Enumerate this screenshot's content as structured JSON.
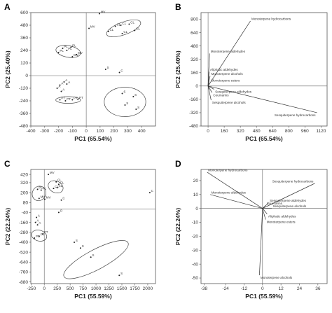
{
  "chart_data": [
    {
      "panel": "A",
      "type": "scatter",
      "xlabel": "PC1 (65.54%)",
      "ylabel": "PC2 (25.40%)",
      "xlim": [
        -400,
        500
      ],
      "ylim": [
        -480,
        600
      ],
      "xticks": [
        -400,
        -300,
        -200,
        -100,
        0,
        100,
        200,
        300,
        400
      ],
      "yticks": [
        600,
        480,
        360,
        240,
        120,
        0,
        -120,
        -240,
        -360,
        -480
      ],
      "points": [
        {
          "label": "MV",
          "x": 95,
          "y": 590
        },
        {
          "label": "MV",
          "x": 20,
          "y": 450
        },
        {
          "label": "CL",
          "x": 210,
          "y": 470
        },
        {
          "label": "CL",
          "x": 250,
          "y": 480
        },
        {
          "label": "CL",
          "x": 310,
          "y": 490
        },
        {
          "label": "CL",
          "x": 160,
          "y": 420
        },
        {
          "label": "CL",
          "x": 260,
          "y": 400
        },
        {
          "label": "CL",
          "x": 350,
          "y": 430
        },
        {
          "label": "PL",
          "x": -170,
          "y": 260
        },
        {
          "label": "PL",
          "x": -140,
          "y": 240
        },
        {
          "label": "PL",
          "x": -110,
          "y": 270
        },
        {
          "label": "PL",
          "x": -200,
          "y": 220
        },
        {
          "label": "MV",
          "x": -100,
          "y": 180
        },
        {
          "label": "MV",
          "x": -70,
          "y": 200
        },
        {
          "label": "S",
          "x": 140,
          "y": 60
        },
        {
          "label": "C",
          "x": 240,
          "y": 30
        },
        {
          "label": "A",
          "x": -160,
          "y": -60
        },
        {
          "label": "A",
          "x": -190,
          "y": -90
        },
        {
          "label": "A",
          "x": -210,
          "y": -120
        },
        {
          "label": "A",
          "x": -180,
          "y": -150
        },
        {
          "label": "A",
          "x": -140,
          "y": -80
        },
        {
          "label": "PT",
          "x": -190,
          "y": -230
        },
        {
          "label": "PT",
          "x": -150,
          "y": -240
        },
        {
          "label": "PT",
          "x": -100,
          "y": -230
        },
        {
          "label": "PT",
          "x": -60,
          "y": -225
        },
        {
          "label": "S",
          "x": 260,
          "y": -170
        },
        {
          "label": "S",
          "x": 340,
          "y": -200
        },
        {
          "label": "S",
          "x": 280,
          "y": -280
        },
        {
          "label": "S",
          "x": 360,
          "y": -320
        }
      ],
      "groups": [
        {
          "cx": 270,
          "cy": 450,
          "rx": 130,
          "ry": 60,
          "rot": 20
        },
        {
          "cx": -130,
          "cy": 230,
          "rx": 90,
          "ry": 55,
          "rot": -10
        },
        {
          "cx": -130,
          "cy": -232,
          "rx": 90,
          "ry": 32,
          "rot": 0
        },
        {
          "cx": 280,
          "cy": -250,
          "rx": 150,
          "ry": 140,
          "rot": 0
        }
      ]
    },
    {
      "panel": "B",
      "type": "biplot",
      "xlabel": "PC1 (65.54%)",
      "ylabel": "PC2 (25.40%)",
      "xlim": [
        -70,
        1180
      ],
      "ylim": [
        -480,
        880
      ],
      "xticks": [
        0,
        160,
        320,
        480,
        640,
        800,
        960,
        1120
      ],
      "yticks": [
        800,
        640,
        480,
        320,
        160,
        0,
        -160,
        -320,
        -480
      ],
      "vectors": [
        {
          "label": "Monoterpene hydrocarbons",
          "x": 420,
          "y": 780
        },
        {
          "label": "Monoterpene aldehydes",
          "x": 15,
          "y": 390
        },
        {
          "label": "Aliphatic aldehydes",
          "x": 10,
          "y": 170
        },
        {
          "label": "Monoterpene alcohols",
          "x": 20,
          "y": 120
        },
        {
          "label": "Monoterpene esters",
          "x": 20,
          "y": 40
        },
        {
          "label": "Sesquiterpene aldehydes",
          "x": 60,
          "y": -40
        },
        {
          "label": "Coumarins",
          "x": 40,
          "y": -80
        },
        {
          "label": "Sesquiterpene alcohols",
          "x": 30,
          "y": -170
        },
        {
          "label": "Sesquiterpene hydrocarbons",
          "x": 1080,
          "y": -320
        }
      ]
    },
    {
      "panel": "C",
      "type": "scatter",
      "xlabel": "PC1 (55.59%)",
      "ylabel": "PC2 (22.24%)",
      "xlim": [
        -260,
        2150
      ],
      "ylim": [
        -900,
        480
      ],
      "xticks": [
        -250,
        0,
        250,
        500,
        750,
        1000,
        1250,
        1500,
        1750,
        2000
      ],
      "yticks": [
        420,
        320,
        200,
        80,
        -40,
        -160,
        -280,
        -400,
        -520,
        -640,
        -760,
        -880
      ],
      "points": [
        {
          "label": "MV",
          "x": 80,
          "y": 420
        },
        {
          "label": "CL",
          "x": 230,
          "y": 330
        },
        {
          "label": "CL",
          "x": 280,
          "y": 300
        },
        {
          "label": "CL",
          "x": 180,
          "y": 250
        },
        {
          "label": "CL",
          "x": 250,
          "y": 260
        },
        {
          "label": "PL",
          "x": -130,
          "y": 240
        },
        {
          "label": "PL",
          "x": -60,
          "y": 230
        },
        {
          "label": "MV",
          "x": -100,
          "y": 130
        },
        {
          "label": "MV",
          "x": 10,
          "y": 120
        },
        {
          "label": "C",
          "x": 330,
          "y": 110
        },
        {
          "label": "C",
          "x": 2040,
          "y": 200
        },
        {
          "label": "O",
          "x": 280,
          "y": -40
        },
        {
          "label": "A",
          "x": -150,
          "y": -100
        },
        {
          "label": "A",
          "x": -170,
          "y": -160
        },
        {
          "label": "A",
          "x": -130,
          "y": -190
        },
        {
          "label": "PT",
          "x": -190,
          "y": -350
        },
        {
          "label": "PT",
          "x": -100,
          "y": -330
        },
        {
          "label": "PT",
          "x": -30,
          "y": -300
        },
        {
          "label": "S",
          "x": 580,
          "y": -400
        },
        {
          "label": "S",
          "x": 700,
          "y": -470
        },
        {
          "label": "S",
          "x": 900,
          "y": -580
        },
        {
          "label": "S",
          "x": 1450,
          "y": -800
        }
      ],
      "groups": [
        {
          "cx": 220,
          "cy": 270,
          "rx": 150,
          "ry": 70,
          "rot": -25
        },
        {
          "cx": -100,
          "cy": 190,
          "rx": 130,
          "ry": 90,
          "rot": -30
        },
        {
          "cx": -100,
          "cy": -320,
          "rx": 150,
          "ry": 65,
          "rot": -15
        },
        {
          "cx": 1000,
          "cy": -610,
          "rx": 700,
          "ry": 120,
          "rot": 28
        }
      ]
    },
    {
      "panel": "D",
      "type": "biplot",
      "xlabel": "PC1 (55.59%)",
      "ylabel": "PC2 (22.24%)",
      "xlim": [
        -40,
        42
      ],
      "ylim": [
        -54,
        28
      ],
      "xticks": [
        -38,
        -24,
        -12,
        0,
        12,
        24,
        36
      ],
      "yticks": [
        20,
        10,
        0,
        -10,
        -20,
        -30,
        -40,
        -50
      ],
      "vectors": [
        {
          "label": "Monoterpene hydrocarbons",
          "x": -36,
          "y": 26
        },
        {
          "label": "Sesquiterpene hydrocarbons",
          "x": 34,
          "y": 18
        },
        {
          "label": "Monoterpene aldehydes",
          "x": -34,
          "y": 10
        },
        {
          "label": "Sesquiterpene aldehydes",
          "x": 4,
          "y": 4
        },
        {
          "label": "Coumarins",
          "x": 2,
          "y": 2
        },
        {
          "label": "Sesquiterpene alcohols",
          "x": 6,
          "y": 0
        },
        {
          "label": "Aliphatic aldehydes",
          "x": 3,
          "y": -4
        },
        {
          "label": "Monoterpene esters",
          "x": 2,
          "y": -8
        },
        {
          "label": "Monoterpene alcohols",
          "x": -2,
          "y": -48
        }
      ]
    }
  ]
}
